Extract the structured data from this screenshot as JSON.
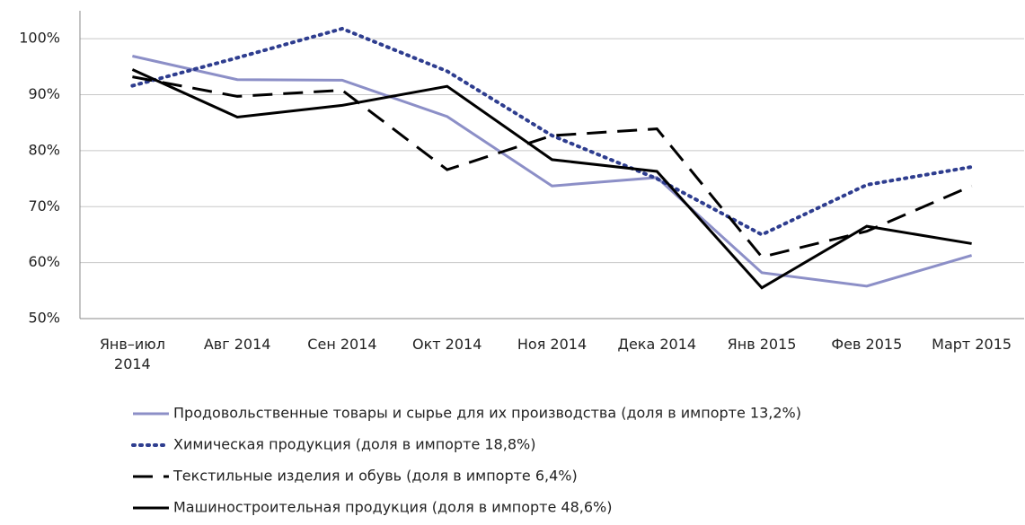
{
  "chart_data": {
    "type": "line",
    "categories": [
      "Янв–июл 2014",
      "Авг 2014",
      "Сен 2014",
      "Окт 2014",
      "Ноя 2014",
      "Дека 2014",
      "Янв 2015",
      "Фев 2015",
      "Март 2015"
    ],
    "series": [
      {
        "name": "Продовольственные товары и сырье для их производства  (доля в импорте 13,2%)",
        "color": "#8c8fc7",
        "dash": "solid",
        "values": [
          96.9,
          92.7,
          92.6,
          86.1,
          73.7,
          75.2,
          58.2,
          55.8,
          61.3
        ]
      },
      {
        "name": "Химическая продукция  (доля в импорте 18,8%)",
        "color": "#2e3d8f",
        "dash": "dotted",
        "values": [
          91.6,
          96.6,
          101.8,
          94.2,
          82.7,
          75.0,
          65.0,
          73.9,
          77.1
        ]
      },
      {
        "name": "Текстильные изделия и обувь  (доля в импорте 6,4%)",
        "color": "#000000",
        "dash": "dashed",
        "values": [
          93.2,
          89.7,
          90.8,
          76.6,
          82.7,
          83.9,
          61.0,
          65.6,
          73.7
        ]
      },
      {
        "name": "Машиностроительная продукция  (доля в импорте 48,6%)",
        "color": "#000000",
        "dash": "solid",
        "values": [
          94.5,
          86.0,
          88.1,
          91.5,
          78.4,
          76.3,
          55.5,
          66.5,
          63.4
        ]
      }
    ],
    "ylim": [
      50,
      105
    ],
    "yticks": [
      {
        "value": 50,
        "label": "50%"
      },
      {
        "value": 60,
        "label": "60%"
      },
      {
        "value": 70,
        "label": "70%"
      },
      {
        "value": 80,
        "label": "80%"
      },
      {
        "value": 90,
        "label": "90%"
      },
      {
        "value": 100,
        "label": "100%"
      }
    ],
    "grid": true,
    "legend": "bottom"
  }
}
